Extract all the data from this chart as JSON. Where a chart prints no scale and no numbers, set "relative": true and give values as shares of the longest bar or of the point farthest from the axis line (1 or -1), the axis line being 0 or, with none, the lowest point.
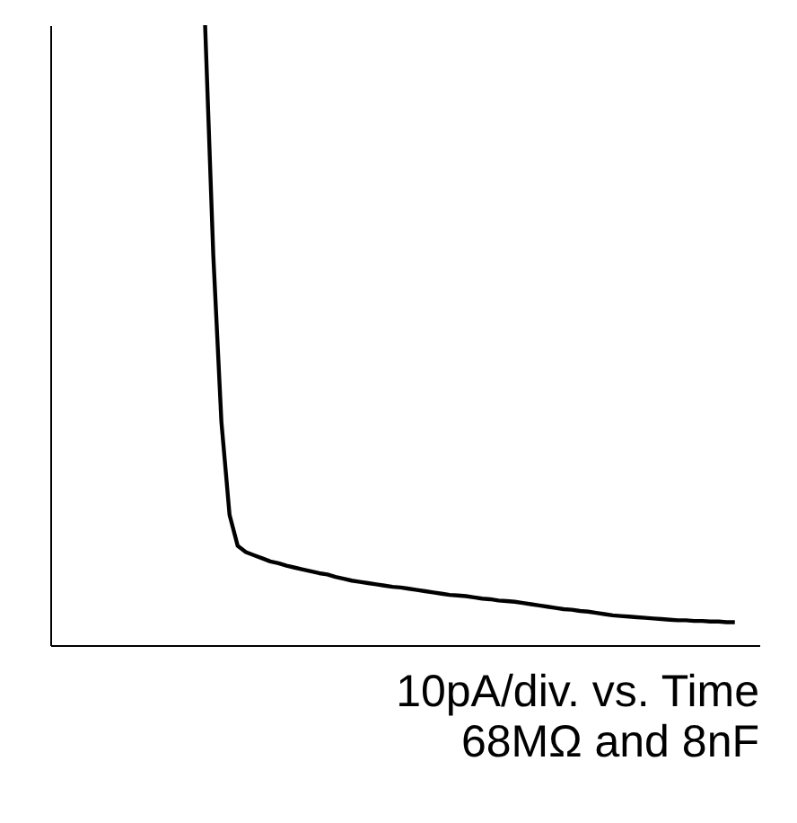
{
  "chart_data": {
    "type": "line",
    "relative": true,
    "title": "10pA/div. vs. Time",
    "subtitle": "68MΩ and 8nF",
    "categories": [
      null,
      null,
      null,
      null,
      null,
      null,
      null,
      null,
      null,
      null,
      null,
      null,
      null,
      null,
      null,
      null,
      null,
      null,
      null,
      null,
      null,
      null,
      null,
      null,
      null,
      null,
      null,
      null,
      null,
      null,
      null,
      null,
      null,
      null,
      null,
      null,
      null,
      null,
      null,
      null,
      null,
      null,
      null,
      null,
      null,
      null,
      null,
      null,
      null,
      null,
      null,
      null,
      null,
      null,
      null,
      null,
      null,
      null,
      null,
      null,
      null,
      null,
      null,
      null,
      null,
      null,
      null,
      null,
      null,
      null,
      null,
      null,
      null,
      null,
      null,
      null,
      null,
      null,
      null,
      null,
      null,
      null,
      null,
      null,
      null,
      null,
      null,
      null
    ],
    "series": [
      {
        "color": "#000000",
        "values": [
          null,
          null,
          null,
          null,
          null,
          null,
          null,
          null,
          null,
          null,
          null,
          null,
          null,
          null,
          null,
          null,
          null,
          null,
          null,
          1.0,
          0.63,
          0.36,
          0.21,
          0.16,
          0.15,
          0.145,
          0.14,
          0.135,
          0.132,
          0.128,
          0.125,
          0.122,
          0.119,
          0.116,
          0.114,
          0.11,
          0.107,
          0.104,
          0.102,
          0.1,
          0.098,
          0.096,
          0.094,
          0.093,
          0.091,
          0.089,
          0.087,
          0.085,
          0.083,
          0.081,
          0.08,
          0.079,
          0.077,
          0.075,
          0.074,
          0.072,
          0.071,
          0.07,
          0.068,
          0.066,
          0.064,
          0.062,
          0.06,
          0.058,
          0.057,
          0.055,
          0.054,
          0.052,
          0.05,
          0.048,
          0.047,
          0.046,
          0.045,
          0.044,
          0.043,
          0.042,
          0.041,
          0.04,
          0.04,
          0.039,
          0.039,
          0.038,
          0.038,
          0.037,
          0.037,
          null,
          null,
          null
        ]
      }
    ],
    "grid": false,
    "marker": "none",
    "line_style": "solid"
  }
}
